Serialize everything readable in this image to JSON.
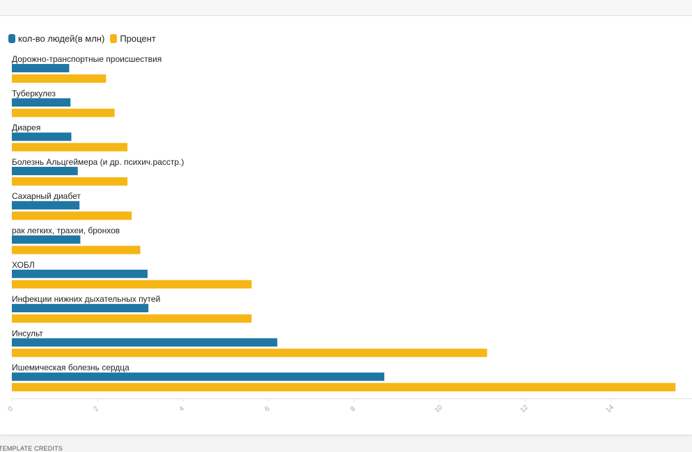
{
  "footer": {
    "credits": "TEMPLATE CREDITS"
  },
  "colors": {
    "series0": "#1f77a4",
    "series1": "#f5b616",
    "tick": "#aaaaaa",
    "axis": "#e0e0e0"
  },
  "chart_data": {
    "type": "bar",
    "orientation": "horizontal",
    "title": "",
    "xlabel": "",
    "ylabel": "",
    "legend_position": "top-left",
    "grid": false,
    "xlim": [
      0,
      15.5
    ],
    "xticks": [
      "0",
      "2",
      "4",
      "6",
      "8",
      "10",
      "12",
      "14"
    ],
    "categories": [
      "Дорожно-транспортные происшествия",
      "Туберкулез",
      "Диарея",
      "Болезнь Альцгеймера (и др. психич.расстр.)",
      "Сахарный диабет",
      "рак легких, трахеи, бронхов",
      "ХОБЛ",
      "Инфекции нижних дыхательных путей",
      "Инсульт",
      "Ишемическая болезнь сердца"
    ],
    "series": [
      {
        "name": "кол-во людей(в млн)",
        "values": [
          1.34,
          1.37,
          1.39,
          1.54,
          1.58,
          1.6,
          3.17,
          3.19,
          6.2,
          8.7
        ]
      },
      {
        "name": "Процент",
        "values": [
          2.2,
          2.4,
          2.7,
          2.7,
          2.8,
          3.0,
          5.6,
          5.6,
          11.1,
          15.5
        ]
      }
    ]
  }
}
